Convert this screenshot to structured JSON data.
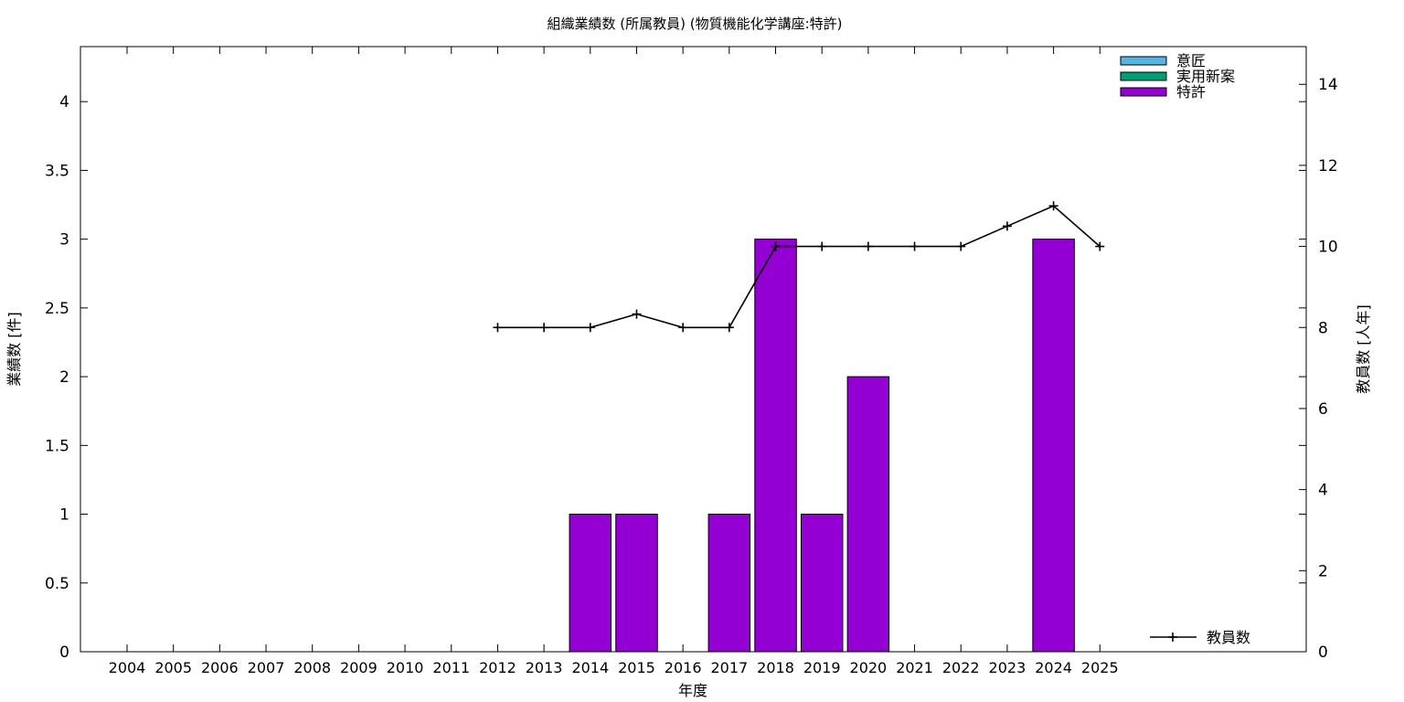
{
  "chart_data": {
    "title": "組織業績数 (所属教員) (物質機能化学講座:特許)",
    "xlabel": "年度",
    "ylabel": "業績数 [件]",
    "y2label": "教員数 [人年]",
    "categories": [
      "2004",
      "2005",
      "2006",
      "2007",
      "2008",
      "2009",
      "2010",
      "2011",
      "2012",
      "2013",
      "2014",
      "2015",
      "2016",
      "2017",
      "2018",
      "2019",
      "2020",
      "2021",
      "2022",
      "2023",
      "2024",
      "2025"
    ],
    "ylim": [
      0,
      4.4
    ],
    "yticks": [
      "0",
      "0.5",
      "1",
      "1.5",
      "2",
      "2.5",
      "3",
      "3.5",
      "4"
    ],
    "ytick_values": [
      0,
      0.5,
      1,
      1.5,
      2,
      2.5,
      3,
      3.5,
      4
    ],
    "y2lim": [
      0,
      14.93
    ],
    "y2ticks": [
      "0",
      "2",
      "4",
      "6",
      "8",
      "10",
      "12",
      "14"
    ],
    "y2tick_values": [
      0,
      2,
      4,
      6,
      8,
      10,
      12,
      14
    ],
    "bar_series": [
      {
        "name": "意匠",
        "color": "#56b4e9",
        "values": [
          0,
          0,
          0,
          0,
          0,
          0,
          0,
          0,
          0,
          0,
          0,
          0,
          0,
          0,
          0,
          0,
          0,
          0,
          0,
          0,
          0,
          0
        ]
      },
      {
        "name": "実用新案",
        "color": "#009e73",
        "values": [
          0,
          0,
          0,
          0,
          0,
          0,
          0,
          0,
          0,
          0,
          0,
          0,
          0,
          0,
          0,
          0,
          0,
          0,
          0,
          0,
          0,
          0
        ]
      },
      {
        "name": "特許",
        "color": "#9400d3",
        "values": [
          0,
          0,
          0,
          0,
          0,
          0,
          0,
          0,
          0,
          0,
          1,
          1,
          0,
          1,
          3,
          1,
          2,
          0,
          0,
          0,
          3,
          0
        ]
      }
    ],
    "line_series": {
      "name": "教員数",
      "color": "#000000",
      "x": [
        "2012",
        "2013",
        "2014",
        "2015",
        "2016",
        "2017",
        "2018",
        "2019",
        "2020",
        "2021",
        "2022",
        "2023",
        "2024",
        "2025"
      ],
      "values": [
        8,
        8,
        8,
        8.33,
        8,
        8,
        10,
        10,
        10,
        10,
        10,
        10.5,
        11,
        10
      ]
    },
    "legend_bars_position": "top-right",
    "legend_line_position": "bottom-right",
    "grid": false
  }
}
